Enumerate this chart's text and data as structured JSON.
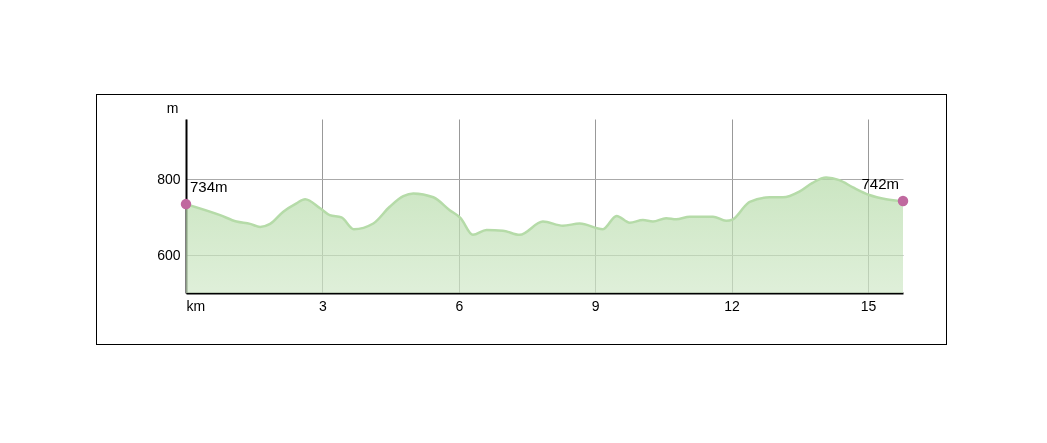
{
  "chart_data": {
    "type": "area",
    "ylabel": "m",
    "xlim": [
      0,
      15.77
    ],
    "xticks": [
      {
        "value": 0,
        "label": "km"
      },
      3,
      6,
      9,
      12,
      15
    ],
    "ylim": [
      500,
      958
    ],
    "yticks": [
      600,
      800
    ],
    "grid": true,
    "series": [
      {
        "color": "#b5dba8",
        "x": [
          0,
          0.75,
          1.11,
          1.41,
          1.63,
          1.85,
          2.14,
          2.43,
          2.62,
          2.95,
          3.16,
          3.42,
          3.69,
          4.12,
          4.48,
          4.78,
          5.0,
          5.44,
          5.8,
          6.04,
          6.31,
          6.61,
          6.97,
          7.34,
          7.85,
          8.29,
          8.66,
          9.17,
          9.47,
          9.76,
          10.05,
          10.27,
          10.56,
          10.78,
          11.08,
          11.59,
          11.88,
          12.03,
          12.32,
          12.4,
          12.84,
          13.13,
          13.49,
          13.78,
          14.08,
          14.37,
          14.67,
          15.03,
          15.4,
          15.77
        ],
        "values": [
          734,
          705,
          688,
          682,
          674,
          682,
          714,
          736,
          747,
          723,
          705,
          699,
          668,
          683,
          727,
          755,
          762,
          752,
          718,
          697,
          653,
          666,
          664,
          653,
          688,
          677,
          683,
          668,
          703,
          685,
          692,
          688,
          697,
          694,
          701,
          701,
          690,
          694,
          732,
          740,
          752,
          752,
          767,
          790,
          804,
          797,
          778,
          758,
          747,
          742
        ]
      }
    ],
    "annotations": [
      {
        "text": "734m",
        "x": 0,
        "y": 734
      },
      {
        "text": "742m",
        "x": 15.77,
        "y": 742
      }
    ]
  }
}
